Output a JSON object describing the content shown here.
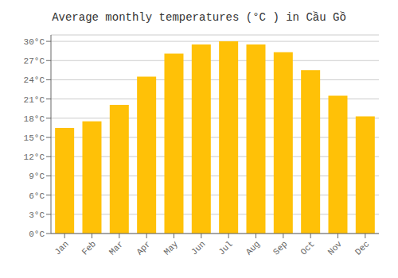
{
  "chart_data": {
    "type": "bar",
    "title": "Average monthly temperatures (°C ) in Cầu Gồ",
    "categories": [
      "Jan",
      "Feb",
      "Mar",
      "Apr",
      "May",
      "Jun",
      "Jul",
      "Aug",
      "Sep",
      "Oct",
      "Nov",
      "Dec"
    ],
    "values": [
      16.5,
      17.5,
      20.1,
      24.5,
      28.1,
      29.5,
      30.0,
      29.5,
      28.3,
      25.5,
      21.5,
      18.3
    ],
    "color": "#FFC107",
    "ylim": [
      0,
      31
    ],
    "yticks": [
      {
        "value": 0,
        "label": "0°C"
      },
      {
        "value": 3,
        "label": "3°C"
      },
      {
        "value": 6,
        "label": "6°C"
      },
      {
        "value": 9,
        "label": "9°C"
      },
      {
        "value": 12,
        "label": "12°C"
      },
      {
        "value": 15,
        "label": "15°C"
      },
      {
        "value": 18,
        "label": "18°C"
      },
      {
        "value": 21,
        "label": "21°C"
      },
      {
        "value": 24,
        "label": "24°C"
      },
      {
        "value": 27,
        "label": "27°C"
      },
      {
        "value": 30,
        "label": "30°C"
      }
    ],
    "grid": true
  }
}
